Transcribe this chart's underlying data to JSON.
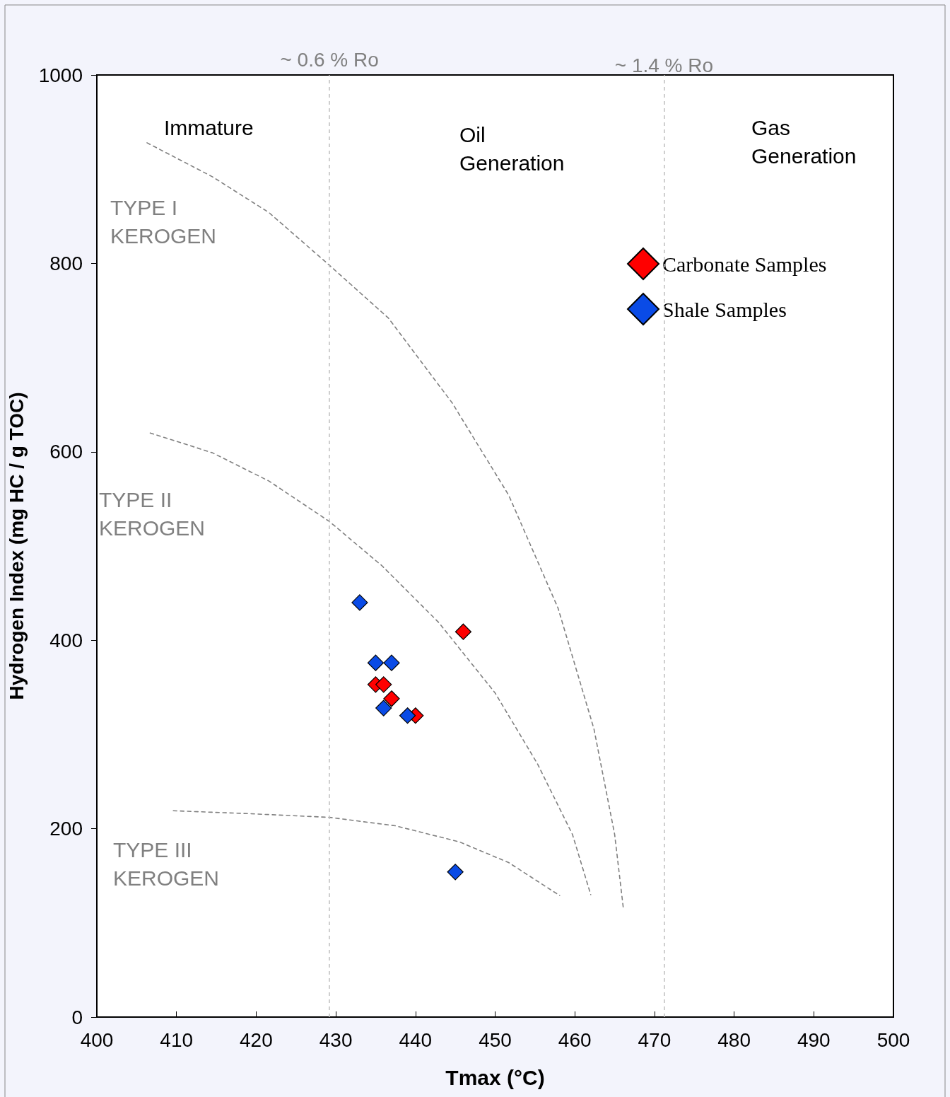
{
  "chart_data": {
    "type": "scatter",
    "xlabel": "Tmax (°C)",
    "ylabel": "Hydrogen Index (mg HC / g TOC)",
    "xlim": [
      400,
      500
    ],
    "xticks": [
      400,
      410,
      420,
      430,
      440,
      450,
      460,
      470,
      480,
      490,
      500
    ],
    "ylim": [
      0,
      1000
    ],
    "yticks": [
      0,
      200,
      400,
      600,
      800,
      1000
    ],
    "grid": false,
    "legend": "top right",
    "marker": "diamond",
    "series": [
      {
        "name": "Carbonate Samples",
        "color": "#ff0000",
        "x": [
          446,
          435,
          436,
          437,
          440
        ],
        "values": [
          409,
          353,
          353,
          338,
          320
        ]
      },
      {
        "name": "Shale Samples",
        "color": "#0a4be6",
        "x": [
          433,
          435,
          437,
          436,
          439,
          445
        ],
        "values": [
          440,
          376,
          376,
          328,
          320,
          154
        ]
      },
      {
        "type": "line",
        "color": "#808080",
        "line_style": "dashed",
        "marker": "none",
        "x": [
          406.3,
          414.5,
          421.6,
          429.2,
          436.6,
          444.6,
          451.7,
          457.9,
          462.4,
          465.0,
          466.1
        ],
        "values": [
          928,
          892,
          854,
          798,
          742,
          652,
          554,
          434,
          306,
          194,
          115
        ]
      },
      {
        "type": "line",
        "color": "#808080",
        "line_style": "dashed",
        "marker": "none",
        "x": [
          406.7,
          414.5,
          421.6,
          429.2,
          435.8,
          442.9,
          450.0,
          455.3,
          459.7,
          462.0
        ],
        "values": [
          620,
          599,
          569,
          526,
          479,
          419,
          344,
          269,
          194,
          130
        ]
      },
      {
        "type": "line",
        "color": "#808080",
        "line_style": "dashed",
        "marker": "none",
        "x": [
          409.6,
          418.9,
          429.2,
          437.5,
          445.5,
          451.7,
          458.1
        ],
        "values": [
          219,
          216,
          212,
          203,
          186,
          164,
          129
        ]
      }
    ],
    "ref_lines": [
      {
        "axis": "x",
        "value": 429.2,
        "label": "~ 0.6 % Ro",
        "color": "#c0c0c0",
        "line_style": "dashed"
      },
      {
        "axis": "x",
        "value": 471.2,
        "label": "~ 1.4 % Ro",
        "color": "#c0c0c0",
        "line_style": "dashed"
      }
    ],
    "annotations": [
      "Immature",
      "Oil Generation",
      "Gas Generation",
      "TYPE I KEROGEN",
      "TYPE II KEROGEN",
      "TYPE III KEROGEN"
    ]
  }
}
